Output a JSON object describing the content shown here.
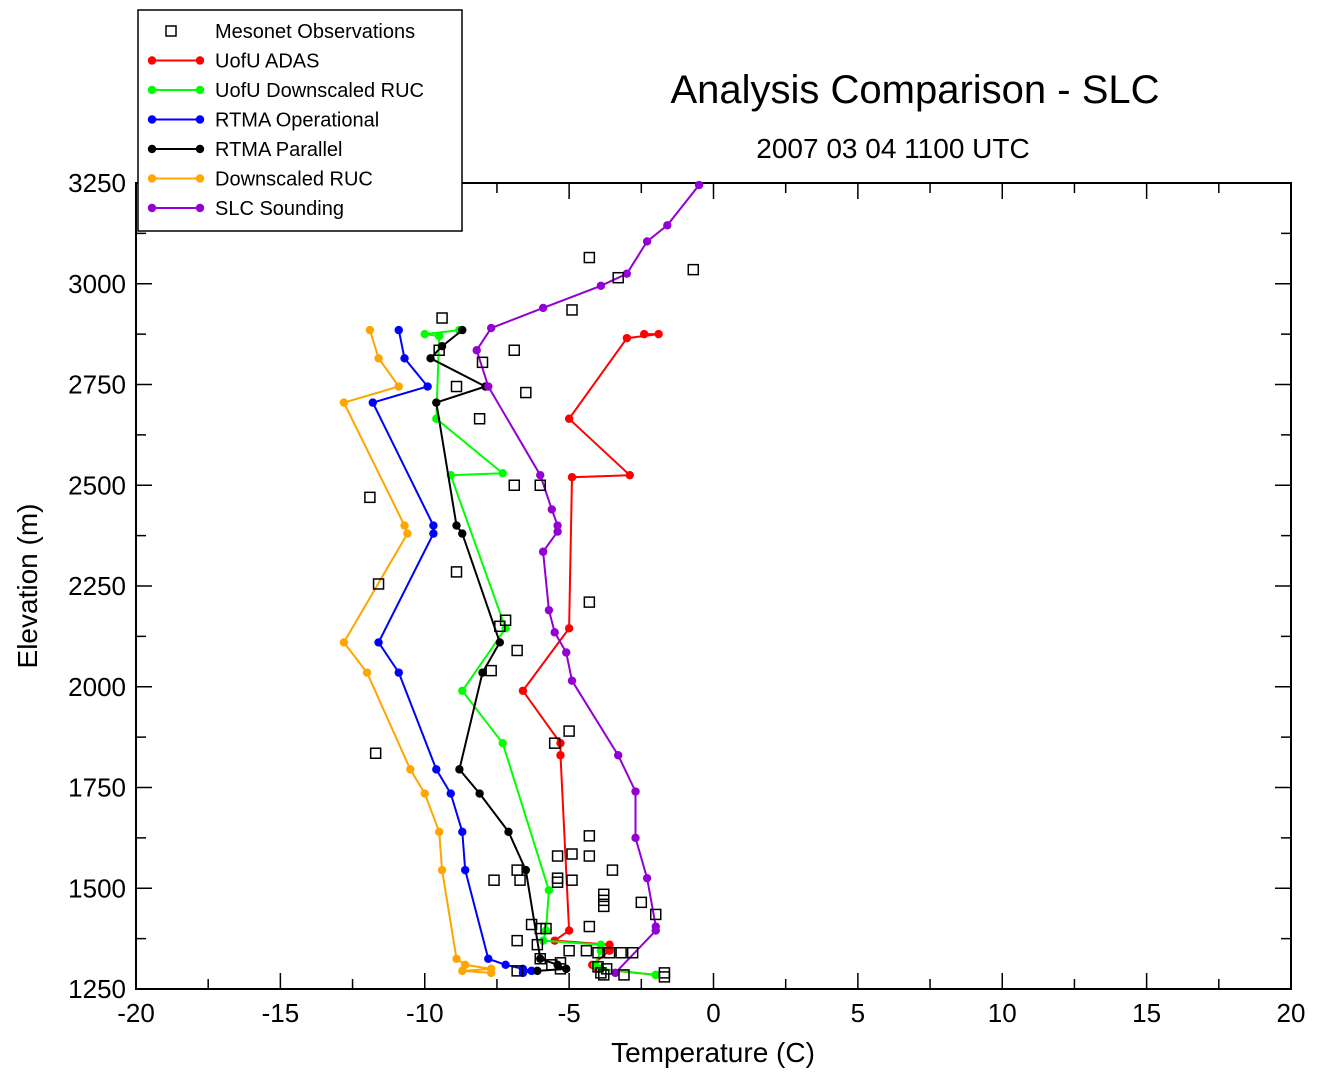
{
  "chart_data": {
    "type": "line",
    "title": "Analysis Comparison - SLC",
    "subtitle": "2007 03 04 1100 UTC",
    "xlabel": "Temperature (C)",
    "ylabel": "Elevation (m)",
    "xlim": [
      -20,
      20
    ],
    "ylim": [
      1250,
      3250
    ],
    "xticks": [
      -20,
      -15,
      -10,
      -5,
      0,
      5,
      10,
      15,
      20
    ],
    "yticks": [
      1250,
      1500,
      1750,
      2000,
      2250,
      2500,
      2750,
      3000,
      3250
    ],
    "x_tick_labels": [
      "-20",
      "-15",
      "-10",
      "-5",
      "0",
      "5",
      "10",
      "15",
      "20"
    ],
    "y_tick_labels": [
      "1250",
      "1500",
      "1750",
      "2000",
      "2250",
      "2500",
      "2750",
      "3000",
      "3250"
    ],
    "legend_position": "top-left",
    "grid": false,
    "observations": {
      "name": "Mesonet Observations",
      "color": "#000000",
      "points": [
        [
          -4.3,
          3065
        ],
        [
          -3.3,
          3015
        ],
        [
          -0.7,
          3035
        ],
        [
          -4.9,
          2935
        ],
        [
          -9.4,
          2915
        ],
        [
          -9.5,
          2835
        ],
        [
          -6.9,
          2835
        ],
        [
          -8.0,
          2805
        ],
        [
          -8.9,
          2745
        ],
        [
          -6.5,
          2730
        ],
        [
          -8.1,
          2665
        ],
        [
          -6.9,
          2500
        ],
        [
          -6.0,
          2500
        ],
        [
          -11.9,
          2470
        ],
        [
          -8.9,
          2285
        ],
        [
          -11.6,
          2255
        ],
        [
          -4.3,
          2210
        ],
        [
          -7.2,
          2165
        ],
        [
          -7.4,
          2150
        ],
        [
          -6.8,
          2090
        ],
        [
          -7.7,
          2040
        ],
        [
          -5.0,
          1890
        ],
        [
          -5.5,
          1860
        ],
        [
          -11.7,
          1835
        ],
        [
          -4.3,
          1630
        ],
        [
          -5.4,
          1580
        ],
        [
          -4.9,
          1585
        ],
        [
          -4.3,
          1580
        ],
        [
          -3.5,
          1545
        ],
        [
          -6.8,
          1545
        ],
        [
          -7.6,
          1520
        ],
        [
          -6.7,
          1520
        ],
        [
          -5.4,
          1525
        ],
        [
          -5.4,
          1515
        ],
        [
          -4.9,
          1520
        ],
        [
          -3.8,
          1485
        ],
        [
          -3.8,
          1470
        ],
        [
          -3.8,
          1455
        ],
        [
          -2.5,
          1465
        ],
        [
          -2.0,
          1435
        ],
        [
          -6.3,
          1410
        ],
        [
          -4.3,
          1405
        ],
        [
          -6.0,
          1400
        ],
        [
          -5.8,
          1400
        ],
        [
          -6.8,
          1370
        ],
        [
          -6.1,
          1360
        ],
        [
          -5.0,
          1345
        ],
        [
          -4.4,
          1345
        ],
        [
          -4.0,
          1340
        ],
        [
          -3.6,
          1340
        ],
        [
          -3.2,
          1340
        ],
        [
          -2.8,
          1340
        ],
        [
          -6.0,
          1325
        ],
        [
          -5.3,
          1315
        ],
        [
          -5.6,
          1310
        ],
        [
          -4.0,
          1305
        ],
        [
          -3.7,
          1300
        ],
        [
          -5.3,
          1300
        ],
        [
          -6.8,
          1295
        ],
        [
          -3.9,
          1290
        ],
        [
          -3.8,
          1285
        ],
        [
          -3.1,
          1285
        ],
        [
          -1.7,
          1290
        ],
        [
          -1.7,
          1280
        ]
      ]
    },
    "series": [
      {
        "name": "UofU ADAS",
        "color": "#ff0000",
        "points": [
          [
            -2.4,
            2875
          ],
          [
            -1.9,
            2875
          ],
          [
            -3.0,
            2865
          ],
          [
            -5.0,
            2665
          ],
          [
            -2.9,
            2525
          ],
          [
            -4.9,
            2520
          ],
          [
            -5.0,
            2145
          ],
          [
            -6.6,
            1990
          ],
          [
            -5.3,
            1860
          ],
          [
            -5.3,
            1830
          ],
          [
            -5.0,
            1395
          ],
          [
            -5.5,
            1370
          ],
          [
            -3.6,
            1360
          ],
          [
            -3.6,
            1345
          ],
          [
            -4.2,
            1310
          ],
          [
            -4.0,
            1300
          ],
          [
            -2.0,
            1285
          ]
        ]
      },
      {
        "name": "UofU Downscaled RUC",
        "color": "#00ff00",
        "points": [
          [
            -8.8,
            2885
          ],
          [
            -10.0,
            2875
          ],
          [
            -9.5,
            2870
          ],
          [
            -9.6,
            2665
          ],
          [
            -7.3,
            2530
          ],
          [
            -9.1,
            2525
          ],
          [
            -7.2,
            2145
          ],
          [
            -8.7,
            1990
          ],
          [
            -7.3,
            1860
          ],
          [
            -5.7,
            1495
          ],
          [
            -5.8,
            1395
          ],
          [
            -5.9,
            1370
          ],
          [
            -3.9,
            1360
          ],
          [
            -3.9,
            1345
          ],
          [
            -4.1,
            1310
          ],
          [
            -3.9,
            1300
          ],
          [
            -2.0,
            1285
          ]
        ]
      },
      {
        "name": "RTMA Operational",
        "color": "#0000ff",
        "points": [
          [
            -10.9,
            2885
          ],
          [
            -10.7,
            2815
          ],
          [
            -9.9,
            2745
          ],
          [
            -11.8,
            2705
          ],
          [
            -9.7,
            2400
          ],
          [
            -9.7,
            2380
          ],
          [
            -11.6,
            2110
          ],
          [
            -10.9,
            2035
          ],
          [
            -9.6,
            1795
          ],
          [
            -9.1,
            1735
          ],
          [
            -8.7,
            1640
          ],
          [
            -8.6,
            1545
          ],
          [
            -7.8,
            1325
          ],
          [
            -7.2,
            1310
          ],
          [
            -6.6,
            1300
          ],
          [
            -6.3,
            1295
          ],
          [
            -6.6,
            1290
          ]
        ]
      },
      {
        "name": "RTMA Parallel",
        "color": "#000000",
        "points": [
          [
            -8.7,
            2885
          ],
          [
            -9.4,
            2845
          ],
          [
            -9.8,
            2815
          ],
          [
            -7.9,
            2745
          ],
          [
            -9.6,
            2705
          ],
          [
            -8.9,
            2400
          ],
          [
            -8.7,
            2380
          ],
          [
            -7.4,
            2110
          ],
          [
            -8.0,
            2035
          ],
          [
            -8.8,
            1795
          ],
          [
            -8.1,
            1735
          ],
          [
            -7.1,
            1640
          ],
          [
            -6.5,
            1545
          ],
          [
            -6.0,
            1325
          ],
          [
            -5.4,
            1310
          ],
          [
            -5.1,
            1300
          ],
          [
            -6.1,
            1295
          ]
        ]
      },
      {
        "name": "Downscaled RUC",
        "color": "#ffa500",
        "points": [
          [
            -11.9,
            2885
          ],
          [
            -11.6,
            2815
          ],
          [
            -10.9,
            2745
          ],
          [
            -12.8,
            2705
          ],
          [
            -10.7,
            2400
          ],
          [
            -10.6,
            2380
          ],
          [
            -12.8,
            2110
          ],
          [
            -12.0,
            2035
          ],
          [
            -10.5,
            1795
          ],
          [
            -10.0,
            1735
          ],
          [
            -9.5,
            1640
          ],
          [
            -9.4,
            1545
          ],
          [
            -8.9,
            1325
          ],
          [
            -8.6,
            1310
          ],
          [
            -7.7,
            1300
          ],
          [
            -8.7,
            1295
          ],
          [
            -7.7,
            1290
          ]
        ]
      },
      {
        "name": "SLC Sounding",
        "color": "#9400d3",
        "points": [
          [
            -0.5,
            3245
          ],
          [
            -1.6,
            3145
          ],
          [
            -2.3,
            3105
          ],
          [
            -3.0,
            3025
          ],
          [
            -3.9,
            2995
          ],
          [
            -5.9,
            2940
          ],
          [
            -7.7,
            2890
          ],
          [
            -8.2,
            2835
          ],
          [
            -7.8,
            2745
          ],
          [
            -6.0,
            2525
          ],
          [
            -5.6,
            2440
          ],
          [
            -5.4,
            2400
          ],
          [
            -5.4,
            2385
          ],
          [
            -5.9,
            2335
          ],
          [
            -5.7,
            2190
          ],
          [
            -5.5,
            2135
          ],
          [
            -5.1,
            2085
          ],
          [
            -4.9,
            2015
          ],
          [
            -3.3,
            1830
          ],
          [
            -2.7,
            1740
          ],
          [
            -2.7,
            1625
          ],
          [
            -2.3,
            1525
          ],
          [
            -2.0,
            1405
          ],
          [
            -2.0,
            1395
          ],
          [
            -3.4,
            1290
          ]
        ]
      }
    ]
  }
}
